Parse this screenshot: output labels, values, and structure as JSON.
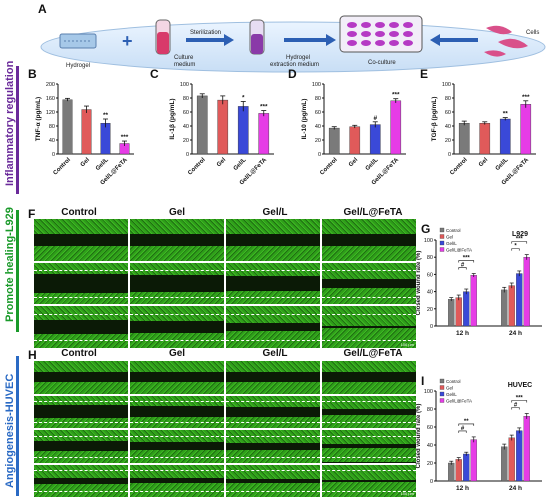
{
  "panels": {
    "A": "A",
    "B": "B",
    "C": "C",
    "D": "D",
    "E": "E",
    "F": "F",
    "G": "G",
    "H": "H",
    "I": "I"
  },
  "schematic": {
    "hydrogel": "Hydrogel",
    "culture_medium": "Culture\nmedium",
    "sterilization": "Sterilization",
    "hydrogel_extraction": "Hydrogel\nextraction medium",
    "coculture": "Co-culture",
    "cells": "Cells"
  },
  "side_labels": {
    "inflammatory": "Inflammatory regulation",
    "l929": "Promote healing-L929",
    "huvec": "Angiogenesis-HUVEC"
  },
  "colors": {
    "control": "#7a7a7a",
    "gel": "#e05a5a",
    "gel_l": "#3a49d8",
    "gel_l_fe": "#e63ce6",
    "side_purple": "#6a2a9a",
    "side_green": "#1a9a2a",
    "side_blue": "#2a6ac4",
    "micro_green": "#2f9e1a"
  },
  "micro_headers": {
    "f": [
      "Control",
      "Gel",
      "Gel/L",
      "Gel/L@FeTA"
    ],
    "h": [
      "Control",
      "Gel",
      "Gel/L",
      "Gel/L@FeTA"
    ]
  },
  "scalebar": "100 μm",
  "chart_data": [
    {
      "id": "B",
      "type": "bar",
      "ylabel": "TNF-α (pg/mL)",
      "ylim": [
        0,
        200
      ],
      "yticks": [
        0,
        40,
        80,
        120,
        160,
        200
      ],
      "categories": [
        "Control",
        "Gel",
        "Gel/L",
        "Gel/L@FeTA"
      ],
      "values": [
        155,
        127,
        88,
        30
      ],
      "errors": [
        4,
        10,
        12,
        7
      ],
      "sig": [
        "",
        "",
        "**",
        "***"
      ]
    },
    {
      "id": "C",
      "type": "bar",
      "ylabel": "IL-1β (pg/mL)",
      "ylim": [
        0,
        100
      ],
      "yticks": [
        0,
        20,
        40,
        60,
        80,
        100
      ],
      "categories": [
        "Control",
        "Gel",
        "Gel/L",
        "Gel/L@FeTA"
      ],
      "values": [
        83,
        77,
        68,
        58
      ],
      "errors": [
        3,
        6,
        7,
        4
      ],
      "sig": [
        "",
        "",
        "*",
        "***"
      ]
    },
    {
      "id": "D",
      "type": "bar",
      "ylabel": "IL-10 (pg/mL)",
      "ylim": [
        0,
        100
      ],
      "yticks": [
        0,
        20,
        40,
        60,
        80,
        100
      ],
      "categories": [
        "Control",
        "Gel",
        "Gel/L",
        "Gel/L@FeTA"
      ],
      "values": [
        37,
        39,
        42,
        76
      ],
      "errors": [
        2,
        2,
        4,
        3
      ],
      "sig": [
        "",
        "",
        "#",
        "***"
      ]
    },
    {
      "id": "E",
      "type": "bar",
      "ylabel": "TGF-β (pg/mL)",
      "ylim": [
        0,
        100
      ],
      "yticks": [
        0,
        20,
        40,
        60,
        80,
        100
      ],
      "categories": [
        "Control",
        "Gel",
        "Gel/L",
        "Gel/L@FeTA"
      ],
      "values": [
        44,
        44,
        50,
        71
      ],
      "errors": [
        3,
        2,
        2,
        5
      ],
      "sig": [
        "",
        "",
        "**",
        "***"
      ]
    },
    {
      "id": "G",
      "type": "bar",
      "title": "L929",
      "ylabel": "Closed wound rate (%)",
      "ylim": [
        0,
        100
      ],
      "yticks": [
        0,
        20,
        40,
        60,
        80,
        100
      ],
      "categories": [
        "12 h",
        "24 h"
      ],
      "legend": [
        "Control",
        "Gel",
        "Gel/L",
        "Gel/L@FeTA"
      ],
      "series": [
        {
          "name": "Control",
          "values": [
            31,
            42
          ]
        },
        {
          "name": "Gel",
          "values": [
            33,
            47
          ]
        },
        {
          "name": "Gel/L",
          "values": [
            40,
            61
          ]
        },
        {
          "name": "Gel/L@FeTA",
          "values": [
            59,
            80
          ]
        }
      ],
      "errors": [
        [
          2,
          3
        ],
        [
          3,
          3
        ],
        [
          3,
          3
        ],
        [
          2,
          3
        ]
      ],
      "brackets": [
        {
          "group": 0,
          "from": 1,
          "to": 2,
          "label": "#"
        },
        {
          "group": 0,
          "from": 1,
          "to": 3,
          "label": "***"
        },
        {
          "group": 1,
          "from": 1,
          "to": 2,
          "label": "*"
        },
        {
          "group": 1,
          "from": 1,
          "to": 3,
          "label": "***"
        }
      ]
    },
    {
      "id": "I",
      "type": "bar",
      "title": "HUVEC",
      "ylabel": "Closed wound rate (%)",
      "ylim": [
        0,
        100
      ],
      "yticks": [
        0,
        20,
        40,
        60,
        80,
        100
      ],
      "categories": [
        "12 h",
        "24 h"
      ],
      "legend": [
        "Control",
        "Gel",
        "Gel/L",
        "Gel/L@FeTA"
      ],
      "series": [
        {
          "name": "Control",
          "values": [
            20,
            38
          ]
        },
        {
          "name": "Gel",
          "values": [
            24,
            48
          ]
        },
        {
          "name": "Gel/L",
          "values": [
            30,
            56
          ]
        },
        {
          "name": "Gel/L@FeTA",
          "values": [
            46,
            72
          ]
        }
      ],
      "errors": [
        [
          2,
          3
        ],
        [
          2,
          3
        ],
        [
          2,
          3
        ],
        [
          3,
          3
        ]
      ],
      "brackets": [
        {
          "group": 0,
          "from": 1,
          "to": 2,
          "label": "#"
        },
        {
          "group": 0,
          "from": 1,
          "to": 3,
          "label": "**"
        },
        {
          "group": 1,
          "from": 1,
          "to": 2,
          "label": "#"
        },
        {
          "group": 1,
          "from": 1,
          "to": 3,
          "label": "***"
        }
      ]
    }
  ]
}
